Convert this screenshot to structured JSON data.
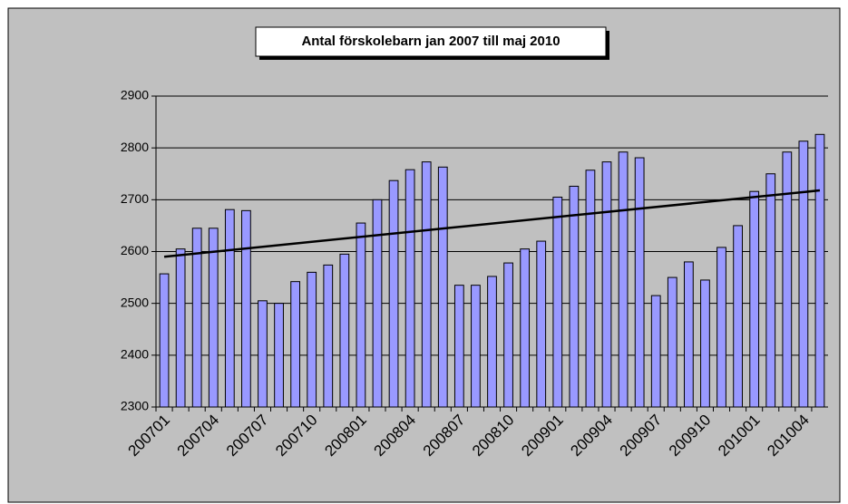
{
  "chart_data": {
    "type": "bar",
    "title": "Antal förskolebarn jan 2007 till maj 2010",
    "categories": [
      "200701",
      null,
      null,
      "200704",
      null,
      null,
      "200707",
      null,
      null,
      "200710",
      null,
      null,
      "200801",
      null,
      null,
      "200804",
      null,
      null,
      "200807",
      null,
      null,
      "200810",
      null,
      null,
      "200901",
      null,
      null,
      "200904",
      null,
      null,
      "200907",
      null,
      null,
      "200910",
      null,
      null,
      "201001",
      null,
      null,
      "201004",
      null
    ],
    "values": [
      2557,
      2605,
      2645,
      2645,
      2681,
      2679,
      2505,
      2500,
      2542,
      2560,
      2574,
      2595,
      2655,
      2700,
      2737,
      2758,
      2773,
      2763,
      2535,
      2535,
      2552,
      2578,
      2605,
      2620,
      2705,
      2726,
      2757,
      2773,
      2792,
      2781,
      2515,
      2550,
      2580,
      2545,
      2608,
      2650,
      2716,
      2750,
      2792,
      2813,
      2826
    ],
    "color": "#9999ff",
    "trendline": [
      2590,
      2718
    ],
    "ylim": [
      2300,
      2900
    ],
    "yticks": [
      2300,
      2400,
      2500,
      2600,
      2700,
      2800,
      2900
    ],
    "grid": true
  }
}
